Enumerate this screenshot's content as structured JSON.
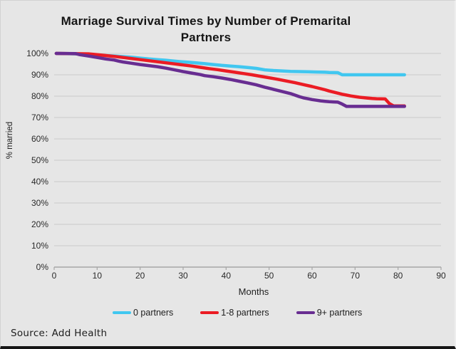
{
  "title": "Marriage Survival Times by Number of Premarital Partners",
  "source": "Source: Add Health",
  "colors": {
    "background": "#e6e6e6",
    "grid": "#c9c9c9",
    "axis": "#a6a6a6",
    "title_text": "#151515",
    "tick_text": "#2a2a2a",
    "series_cyan": "#41c7f0",
    "series_red": "#eb1c24",
    "series_purple": "#682d91"
  },
  "chart_data": {
    "type": "line",
    "title": "Marriage Survival Times by Number of Premarital Partners",
    "xlabel": "Months",
    "ylabel": "% married",
    "xlim": [
      0,
      90
    ],
    "ylim": [
      0,
      100
    ],
    "x_ticks": [
      0,
      10,
      20,
      30,
      40,
      50,
      60,
      70,
      80,
      90
    ],
    "y_ticks": [
      "0%",
      "10%",
      "20%",
      "30%",
      "40%",
      "50%",
      "60%",
      "70%",
      "80%",
      "90%",
      "100%"
    ],
    "grid": "horizontal",
    "legend_position": "bottom",
    "series": [
      {
        "name": "0 partners",
        "color": "#41c7f0",
        "points": [
          [
            0.5,
            100
          ],
          [
            3,
            99.9
          ],
          [
            5,
            99.8
          ],
          [
            8,
            99.6
          ],
          [
            10,
            99.3
          ],
          [
            12,
            99.0
          ],
          [
            14,
            98.8
          ],
          [
            16,
            98.5
          ],
          [
            18,
            98.2
          ],
          [
            20,
            97.8
          ],
          [
            22,
            97.4
          ],
          [
            24,
            97.1
          ],
          [
            26,
            96.8
          ],
          [
            27,
            96.6
          ],
          [
            29,
            96.2
          ],
          [
            31,
            95.9
          ],
          [
            33,
            95.6
          ],
          [
            35,
            95.2
          ],
          [
            37,
            94.8
          ],
          [
            39,
            94.4
          ],
          [
            41,
            94.1
          ],
          [
            43,
            93.8
          ],
          [
            45,
            93.4
          ],
          [
            47,
            93.0
          ],
          [
            49,
            92.3
          ],
          [
            51,
            92.0
          ],
          [
            53,
            91.8
          ],
          [
            55,
            91.6
          ],
          [
            57,
            91.5
          ],
          [
            59,
            91.4
          ],
          [
            61,
            91.3
          ],
          [
            63,
            91.2
          ],
          [
            64,
            91.1
          ],
          [
            66,
            91.0
          ],
          [
            67,
            90.0
          ],
          [
            81.5,
            90.0
          ]
        ]
      },
      {
        "name": "1-8 partners",
        "color": "#eb1c24",
        "points": [
          [
            0.5,
            100
          ],
          [
            8,
            99.8
          ],
          [
            10,
            99.4
          ],
          [
            12,
            99.0
          ],
          [
            14,
            98.6
          ],
          [
            16,
            98.1
          ],
          [
            18,
            97.6
          ],
          [
            20,
            97.1
          ],
          [
            22,
            96.6
          ],
          [
            24,
            96.1
          ],
          [
            26,
            95.6
          ],
          [
            28,
            95.1
          ],
          [
            30,
            94.6
          ],
          [
            32,
            94.1
          ],
          [
            34,
            93.5
          ],
          [
            36,
            92.9
          ],
          [
            38,
            92.4
          ],
          [
            40,
            91.8
          ],
          [
            42,
            91.2
          ],
          [
            44,
            90.6
          ],
          [
            46,
            90.0
          ],
          [
            48,
            89.3
          ],
          [
            50,
            88.6
          ],
          [
            52,
            87.9
          ],
          [
            54,
            87.1
          ],
          [
            56,
            86.3
          ],
          [
            58,
            85.4
          ],
          [
            60,
            84.5
          ],
          [
            62,
            83.5
          ],
          [
            63,
            83.0
          ],
          [
            64,
            82.4
          ],
          [
            65,
            81.9
          ],
          [
            66,
            81.4
          ],
          [
            67,
            80.9
          ],
          [
            68,
            80.5
          ],
          [
            69,
            80.1
          ],
          [
            70,
            79.8
          ],
          [
            71,
            79.5
          ],
          [
            72,
            79.3
          ],
          [
            73,
            79.1
          ],
          [
            74,
            78.9
          ],
          [
            75,
            78.8
          ],
          [
            77,
            78.7
          ],
          [
            78,
            76.5
          ],
          [
            79,
            75.4
          ],
          [
            81.5,
            75.4
          ]
        ]
      },
      {
        "name": "9+ partners",
        "color": "#682d91",
        "points": [
          [
            0.5,
            100
          ],
          [
            5,
            99.9
          ],
          [
            6,
            99.4
          ],
          [
            8,
            98.8
          ],
          [
            10,
            98.1
          ],
          [
            12,
            97.4
          ],
          [
            14,
            96.9
          ],
          [
            15,
            96.4
          ],
          [
            16,
            96.0
          ],
          [
            18,
            95.4
          ],
          [
            20,
            94.8
          ],
          [
            22,
            94.3
          ],
          [
            24,
            93.8
          ],
          [
            26,
            93.1
          ],
          [
            28,
            92.3
          ],
          [
            30,
            91.5
          ],
          [
            32,
            90.8
          ],
          [
            34,
            90.1
          ],
          [
            35,
            89.6
          ],
          [
            37,
            89.1
          ],
          [
            39,
            88.5
          ],
          [
            41,
            87.8
          ],
          [
            43,
            87.0
          ],
          [
            45,
            86.2
          ],
          [
            47,
            85.3
          ],
          [
            49,
            84.2
          ],
          [
            51,
            83.2
          ],
          [
            53,
            82.2
          ],
          [
            55,
            81.2
          ],
          [
            56,
            80.5
          ],
          [
            57,
            79.8
          ],
          [
            58,
            79.2
          ],
          [
            59,
            78.8
          ],
          [
            60,
            78.4
          ],
          [
            61,
            78.1
          ],
          [
            62,
            77.8
          ],
          [
            63,
            77.6
          ],
          [
            64,
            77.4
          ],
          [
            65,
            77.3
          ],
          [
            66,
            77.2
          ],
          [
            67,
            76.3
          ],
          [
            68,
            75.2
          ],
          [
            81.5,
            75.2
          ]
        ]
      }
    ]
  }
}
